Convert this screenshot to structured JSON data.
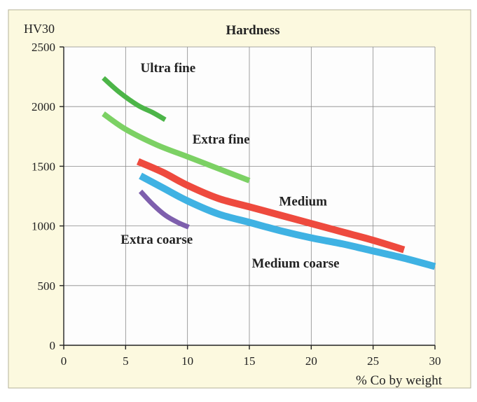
{
  "chart_data": {
    "type": "line",
    "title": "Hardness",
    "ylabel": "HV30",
    "xlabel": "% Co by weight",
    "xlim": [
      0,
      30
    ],
    "ylim": [
      0,
      2500
    ],
    "xticks": [
      0,
      5,
      10,
      15,
      20,
      25,
      30
    ],
    "yticks": [
      0,
      500,
      1000,
      1500,
      2000,
      2500
    ],
    "grid": true,
    "series": [
      {
        "name": "Ultra fine",
        "color": "#4cb548",
        "x": [
          3.2,
          4.5,
          6.0,
          7.2,
          8.2
        ],
        "y": [
          2240,
          2120,
          2010,
          1950,
          1890
        ]
      },
      {
        "name": "Extra fine",
        "color": "#7cd164",
        "x": [
          3.2,
          5,
          7.5,
          10,
          12.5,
          15
        ],
        "y": [
          1940,
          1810,
          1680,
          1580,
          1480,
          1380
        ]
      },
      {
        "name": "Medium",
        "color": "#ee4a3e",
        "x": [
          6,
          8,
          10,
          12.5,
          15,
          17.5,
          20,
          22.5,
          25,
          27.5
        ],
        "y": [
          1540,
          1450,
          1340,
          1230,
          1160,
          1090,
          1020,
          950,
          880,
          800
        ]
      },
      {
        "name": "Medium coarse",
        "color": "#3fb2e3",
        "x": [
          6.2,
          8,
          10,
          12.5,
          15,
          17.5,
          20,
          22.5,
          25,
          27.5,
          30
        ],
        "y": [
          1420,
          1320,
          1210,
          1100,
          1030,
          960,
          900,
          850,
          790,
          730,
          660
        ]
      },
      {
        "name": "Extra coarse",
        "color": "#7e5fad",
        "x": [
          6.2,
          7.2,
          8.2,
          9.2,
          10.1
        ],
        "y": [
          1290,
          1180,
          1090,
          1030,
          990
        ]
      }
    ],
    "annotations": [
      {
        "text": "Ultra fine",
        "series": "Ultra fine"
      },
      {
        "text": "Extra fine",
        "series": "Extra fine"
      },
      {
        "text": "Medium",
        "series": "Medium"
      },
      {
        "text": "Medium coarse",
        "series": "Medium coarse"
      },
      {
        "text": "Extra coarse",
        "series": "Extra coarse"
      }
    ]
  }
}
